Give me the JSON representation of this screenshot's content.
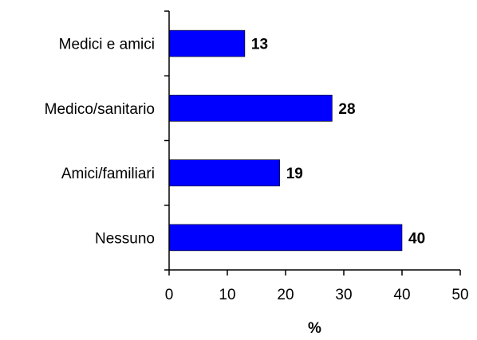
{
  "chart_data": {
    "type": "bar",
    "orientation": "horizontal",
    "categories": [
      "Medici e amici",
      "Medico/sanitario",
      "Amici/familiari",
      "Nessuno"
    ],
    "values": [
      13,
      28,
      19,
      40
    ],
    "xlabel": "%",
    "ylabel": "",
    "xlim": [
      0,
      50
    ],
    "xticks": [
      0,
      10,
      20,
      30,
      40,
      50
    ],
    "bar_color": "#0000ff",
    "grid": false,
    "legend": "none",
    "data_labels": true
  }
}
